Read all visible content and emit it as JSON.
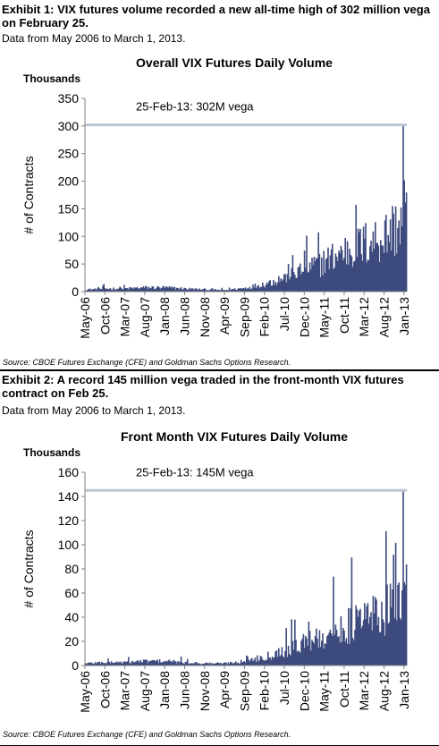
{
  "exhibit1": {
    "title": "Exhibit 1: VIX futures volume recorded a new all-time high of 302 million vega on February 25.",
    "subtitle": "Data from May 2006 to March 1, 2013.",
    "source": "Source:  CBOE Futures Exchange (CFE) and Goldman Sachs Options Research."
  },
  "exhibit2": {
    "title": "Exhibit 2: A record 145 million vega traded in the front-month VIX futures contract on Feb 25.",
    "subtitle": "Data from May 2006 to March 1, 2013.",
    "source": "Source: CBOE Futures Exchange (CFE) and Goldman Sachs Options Research."
  },
  "colors": {
    "series": "#3d4a7e",
    "reference_line": "#b8c7d6",
    "axis": "#808080"
  },
  "chart_data": [
    {
      "type": "area",
      "title": "Overall VIX Futures Daily Volume",
      "unit_label": "Thousands",
      "ylabel": "# of Contracts",
      "xlabel": "",
      "ylim": [
        0,
        350
      ],
      "yticks": [
        0,
        50,
        100,
        150,
        200,
        250,
        300,
        350
      ],
      "xticks": [
        "May-06",
        "Oct-06",
        "Mar-07",
        "Aug-07",
        "Jan-08",
        "Jun-08",
        "Nov-08",
        "Apr-09",
        "Sep-09",
        "Feb-10",
        "Jul-10",
        "Dec-10",
        "May-11",
        "Oct-11",
        "Mar-12",
        "Aug-12",
        "Jan-13"
      ],
      "grid": false,
      "legend": "none",
      "reference_line": {
        "value": 302,
        "label": "25-Feb-13:  302M vega"
      },
      "series": [
        {
          "x": [
            "May-06",
            "Oct-06",
            "Mar-07",
            "Aug-07",
            "Jan-08",
            "Jun-08",
            "Nov-08",
            "Apr-09",
            "Sep-09",
            "Feb-10",
            "Jul-10",
            "Dec-10",
            "May-11",
            "Oct-11",
            "Mar-12",
            "Aug-12",
            "Jan-13",
            "25-Feb-13",
            "Mar-13"
          ],
          "values": [
            4,
            6,
            6,
            8,
            8,
            6,
            4,
            3,
            7,
            15,
            28,
            45,
            60,
            80,
            95,
            110,
            140,
            302,
            170
          ]
        }
      ]
    },
    {
      "type": "area",
      "title": "Front Month VIX Futures Daily Volume",
      "unit_label": "Thousands",
      "ylabel": "# of Contracts",
      "xlabel": "",
      "ylim": [
        0,
        160
      ],
      "yticks": [
        0,
        20,
        40,
        60,
        80,
        100,
        120,
        140,
        160
      ],
      "xticks": [
        "May-06",
        "Oct-06",
        "Mar-07",
        "Aug-07",
        "Jan-08",
        "Jun-08",
        "Nov-08",
        "Apr-09",
        "Sep-09",
        "Feb-10",
        "Jul-10",
        "Dec-10",
        "May-11",
        "Oct-11",
        "Mar-12",
        "Aug-12",
        "Jan-13"
      ],
      "grid": false,
      "legend": "none",
      "reference_line": {
        "value": 145,
        "label": "25-Feb-13: 145M vega"
      },
      "series": [
        {
          "x": [
            "May-06",
            "Oct-06",
            "Mar-07",
            "Aug-07",
            "Jan-08",
            "Jun-08",
            "Nov-08",
            "Apr-09",
            "Sep-09",
            "Feb-10",
            "Jul-10",
            "Dec-10",
            "May-11",
            "Oct-11",
            "Mar-12",
            "Aug-12",
            "Jan-13",
            "25-Feb-13",
            "Mar-13"
          ],
          "values": [
            2,
            3,
            3,
            4,
            4,
            3,
            2,
            2,
            4,
            8,
            14,
            22,
            28,
            36,
            42,
            50,
            62,
            145,
            80
          ]
        }
      ]
    }
  ]
}
